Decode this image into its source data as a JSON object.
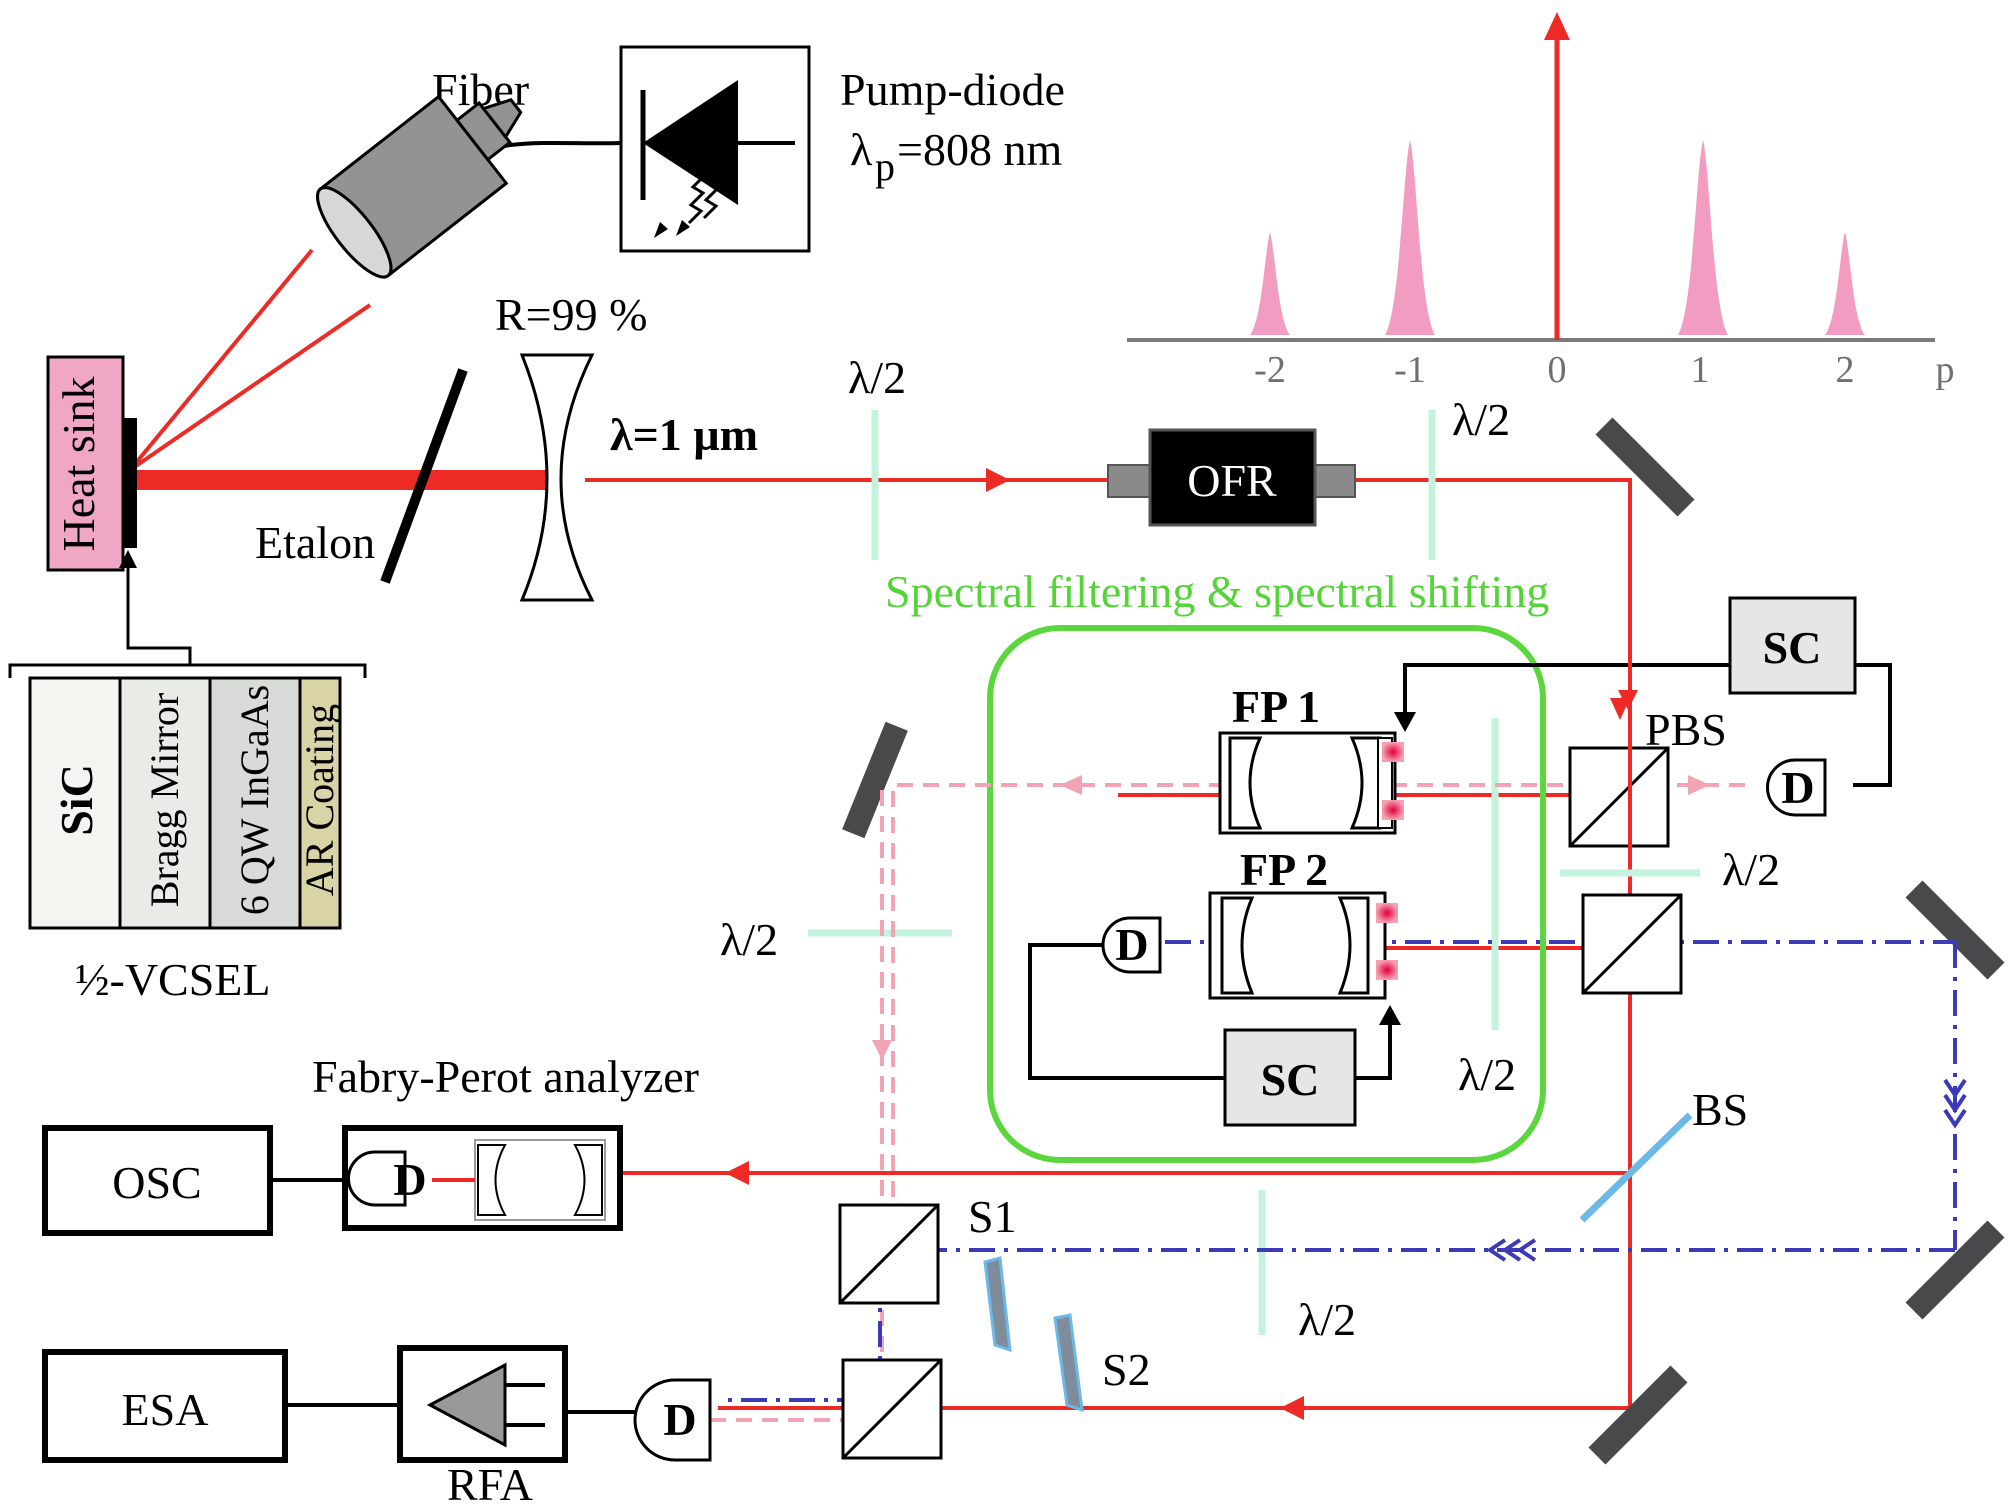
{
  "labels": {
    "fiber": "Fiber",
    "pump_line1": "Pump-diode",
    "pump_line2": "λ",
    "pump_sub": "p",
    "pump_line2_rest": "=808 nm",
    "mirror_r": "R=99 %",
    "heat_sink": "Heat sink",
    "etalon": "Etalon",
    "wavelength": "λ=1 µm",
    "half_wave": "λ/2",
    "ofr": "OFR",
    "spectral_box": "Spectral filtering & spectral shifting",
    "sc": "SC",
    "pbs": "PBS",
    "detector": "D",
    "fp1": "FP 1",
    "fp2": "FP 2",
    "bs": "BS",
    "s1": "S1",
    "s2": "S2",
    "fp_analyzer": "Fabry-Perot analyzer",
    "osc": "OSC",
    "esa": "ESA",
    "rfa": "RFA",
    "vcsel": "½-VCSEL"
  },
  "vcsel_layers": [
    {
      "name": "SiC",
      "color": "#f4f4f1"
    },
    {
      "name": "Bragg Mirror",
      "color": "#e9ebe6"
    },
    {
      "name": "6 QW InGaAs",
      "color": "#d9dbd8"
    },
    {
      "name": "AR Coating",
      "color": "#d9d4a6"
    }
  ],
  "spectrum": {
    "axis_label": "p",
    "ticks": [
      "-2",
      "-1",
      "0",
      "1",
      "2"
    ]
  },
  "colors": {
    "beam_red": "#ee2a27",
    "dashed_pink": "#f2a3b4",
    "dashdot_blue": "#3c3ab6",
    "green_box": "#5ad73c",
    "waveplate": "#c3f2dd",
    "heat_sink": "#f0a7c4",
    "mirror": "#47494a",
    "spectrum_peak": "#f39cc2",
    "bs": "#6cb8e6"
  }
}
